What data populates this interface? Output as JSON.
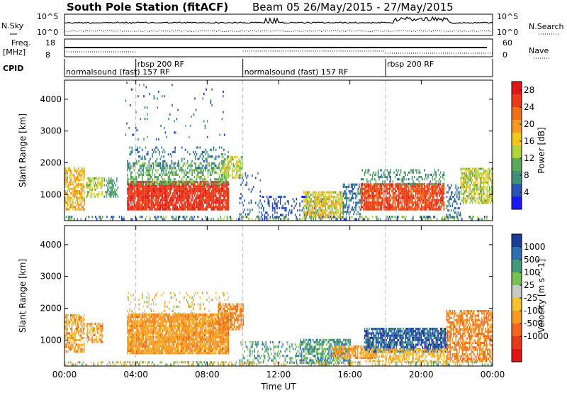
{
  "header": {
    "station": "South Pole Station (fitACF)",
    "beam_range": "Beam 05 26/May/2015 - 27/May/2015"
  },
  "sky_panel": {
    "left_label": "N.Sky",
    "right_label": "N.Search",
    "left_ticks": [
      "10^5",
      "10^0"
    ],
    "right_ticks": [
      "10^5",
      "10^0"
    ]
  },
  "freq_panel": {
    "left_label_1": "Freq.",
    "left_label_2": "[MHz]",
    "right_label": "Nave",
    "left_ticks": [
      "18",
      "8"
    ],
    "right_ticks": [
      "60",
      "0"
    ]
  },
  "cpid": {
    "label": "CPID",
    "segments": [
      {
        "text": "normalsound (fast) 157 RF",
        "start_h": 0.0,
        "end_h": 4.0
      },
      {
        "text": "rbsp 200 RF",
        "start_h": 4.0,
        "end_h": 10.0
      },
      {
        "text": "normalsound (fast) 157 RF",
        "start_h": 10.0,
        "end_h": 18.0
      },
      {
        "text": "rbsp 200 RF",
        "start_h": 18.0,
        "end_h": 22.0
      }
    ]
  },
  "colors": {
    "power": [
      "#1a1aff",
      "#2b56b5",
      "#3f8f7a",
      "#5aaa5a",
      "#b2d43e",
      "#f2c81a",
      "#f59a1f",
      "#f0701a",
      "#ec3a17",
      "#e21616"
    ],
    "velocity": [
      "#1b3d9a",
      "#2f6fb0",
      "#3f9a7a",
      "#78c050",
      "#c8c8c8",
      "#f5c22a",
      "#f59a1f",
      "#f2681a",
      "#e83a16",
      "#e11414"
    ]
  },
  "chart_data": [
    {
      "type": "heatmap",
      "title": "",
      "quantity": "Power",
      "xlabel": "Time UT",
      "ylabel": "Slant Range [km]",
      "xlim": [
        0,
        24
      ],
      "ylim": [
        180,
        4600
      ],
      "x_ticks": [
        "00:00",
        "04:00",
        "08:00",
        "12:00",
        "16:00",
        "20:00",
        "00:00"
      ],
      "y_ticks": [
        1000,
        2000,
        3000,
        4000
      ],
      "colorbar_label": "Power [dB]",
      "colorbar_ticks": [
        4,
        8,
        12,
        16,
        20,
        24,
        28
      ],
      "colorbar_range": [
        0,
        30
      ],
      "regions": [
        {
          "t0": 0.0,
          "t1": 1.1,
          "r0": 500,
          "r1": 1800,
          "v": 18,
          "spread": 8,
          "density": 0.65
        },
        {
          "t0": 1.2,
          "t1": 2.1,
          "r0": 900,
          "r1": 1500,
          "v": 14,
          "spread": 8,
          "density": 0.6
        },
        {
          "t0": 2.2,
          "t1": 3.0,
          "r0": 900,
          "r1": 1500,
          "v": 9,
          "spread": 6,
          "density": 0.45
        },
        {
          "t0": 3.5,
          "t1": 9.2,
          "r0": 500,
          "r1": 1400,
          "v": 26,
          "spread": 4,
          "density": 0.9
        },
        {
          "t0": 3.5,
          "t1": 9.2,
          "r0": 1300,
          "r1": 2000,
          "v": 10,
          "spread": 8,
          "density": 0.5
        },
        {
          "t0": 3.5,
          "t1": 9.2,
          "r0": 1800,
          "r1": 2500,
          "v": 6,
          "spread": 5,
          "density": 0.18
        },
        {
          "t0": 8.8,
          "t1": 10.0,
          "r0": 1500,
          "r1": 2200,
          "v": 14,
          "spread": 8,
          "density": 0.6
        },
        {
          "t0": 9.8,
          "t1": 11.0,
          "r0": 200,
          "r1": 1700,
          "v": 5,
          "spread": 4,
          "density": 0.12
        },
        {
          "t0": 11.0,
          "t1": 14.5,
          "r0": 250,
          "r1": 900,
          "v": 4,
          "spread": 3,
          "density": 0.3
        },
        {
          "t0": 13.4,
          "t1": 15.6,
          "r0": 250,
          "r1": 1050,
          "v": 16,
          "spread": 10,
          "density": 0.75
        },
        {
          "t0": 15.6,
          "t1": 16.6,
          "r0": 350,
          "r1": 1300,
          "v": 6,
          "spread": 5,
          "density": 0.45
        },
        {
          "t0": 16.6,
          "t1": 21.3,
          "r0": 500,
          "r1": 1350,
          "v": 25,
          "spread": 5,
          "density": 0.85
        },
        {
          "t0": 16.6,
          "t1": 21.3,
          "r0": 1300,
          "r1": 1750,
          "v": 8,
          "spread": 6,
          "density": 0.3
        },
        {
          "t0": 21.4,
          "t1": 22.2,
          "r0": 250,
          "r1": 1300,
          "v": 6,
          "spread": 4,
          "density": 0.35
        },
        {
          "t0": 22.2,
          "t1": 24.0,
          "r0": 700,
          "r1": 1800,
          "v": 14,
          "spread": 9,
          "density": 0.7
        },
        {
          "t0": 0.0,
          "t1": 24.0,
          "r0": 190,
          "r1": 330,
          "v": 8,
          "spread": 14,
          "density": 0.35
        },
        {
          "t0": 3.4,
          "t1": 9.0,
          "r0": 2700,
          "r1": 4500,
          "v": 6,
          "spread": 8,
          "density": 0.03
        }
      ]
    },
    {
      "type": "heatmap",
      "title": "",
      "quantity": "Velocity",
      "xlabel": "Time UT",
      "ylabel": "Slant Range [km]",
      "xlim": [
        0,
        24
      ],
      "ylim": [
        180,
        4600
      ],
      "x_ticks": [
        "00:00",
        "04:00",
        "08:00",
        "12:00",
        "16:00",
        "20:00",
        "00:00"
      ],
      "y_ticks": [
        1000,
        2000,
        3000,
        4000
      ],
      "colorbar_label": "Velocity [m s^-1]",
      "colorbar_ticks": [
        "1000",
        "500",
        "100",
        "25",
        "-25",
        "-100",
        "-500",
        "-1000"
      ],
      "regions": [
        {
          "t0": 0.0,
          "t1": 1.1,
          "r0": 600,
          "r1": 1800,
          "v": 6,
          "spread": 3,
          "density": 0.65
        },
        {
          "t0": 1.2,
          "t1": 2.1,
          "r0": 900,
          "r1": 1500,
          "v": 6,
          "spread": 3,
          "density": 0.6
        },
        {
          "t0": 3.5,
          "t1": 9.2,
          "r0": 550,
          "r1": 1800,
          "v": 6.5,
          "spread": 1.5,
          "density": 0.9
        },
        {
          "t0": 3.5,
          "t1": 9.2,
          "r0": 1800,
          "r1": 2500,
          "v": 5,
          "spread": 3,
          "density": 0.15
        },
        {
          "t0": 8.6,
          "t1": 10.0,
          "r0": 1300,
          "r1": 2100,
          "v": 7,
          "spread": 2,
          "density": 0.7
        },
        {
          "t0": 9.8,
          "t1": 13.2,
          "r0": 250,
          "r1": 900,
          "v": 3,
          "spread": 4,
          "density": 0.3
        },
        {
          "t0": 13.2,
          "t1": 16.0,
          "r0": 250,
          "r1": 1000,
          "v": 2.5,
          "spread": 3,
          "density": 0.65
        },
        {
          "t0": 15.0,
          "t1": 17.5,
          "r0": 400,
          "r1": 800,
          "v": 6.5,
          "spread": 1.5,
          "density": 0.7
        },
        {
          "t0": 16.8,
          "t1": 21.5,
          "r0": 600,
          "r1": 1350,
          "v": 1,
          "spread": 3,
          "density": 0.8
        },
        {
          "t0": 16.8,
          "t1": 21.5,
          "r0": 300,
          "r1": 700,
          "v": 6,
          "spread": 2,
          "density": 0.55
        },
        {
          "t0": 21.4,
          "t1": 24.0,
          "r0": 300,
          "r1": 1900,
          "v": 7,
          "spread": 2,
          "density": 0.65
        },
        {
          "t0": 0.0,
          "t1": 24.0,
          "r0": 190,
          "r1": 330,
          "v": 4.5,
          "spread": 5,
          "density": 0.35
        }
      ]
    }
  ]
}
